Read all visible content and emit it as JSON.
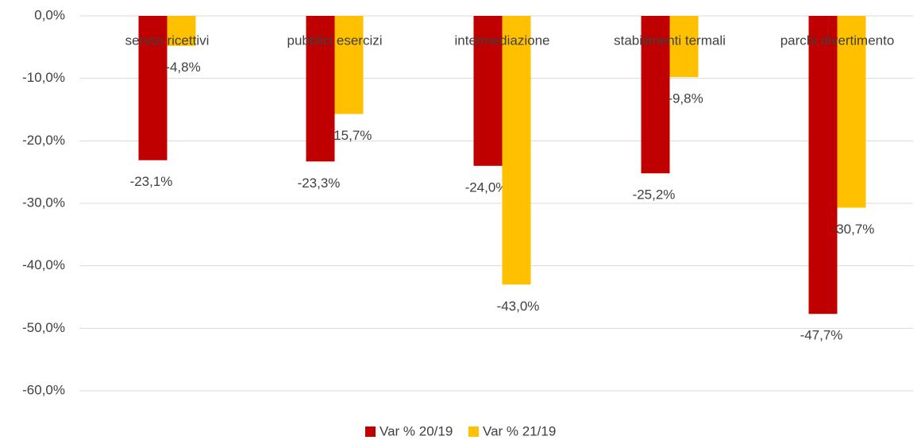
{
  "chart_data": {
    "type": "bar",
    "categories": [
      "servizi ricettivi",
      "pubblici esercizi",
      "intermediazione",
      "stabilimenti termali",
      "parchi divertimento"
    ],
    "series": [
      {
        "name": "Var % 20/19",
        "color": "#c00000",
        "values": [
          -23.1,
          -23.3,
          -24.0,
          -25.2,
          -47.7
        ],
        "value_labels": [
          "-23,1%",
          "-23,3%",
          "-24,0%",
          "-25,2%",
          "-47,7%"
        ]
      },
      {
        "name": "Var % 21/19",
        "color": "#ffc000",
        "values": [
          -4.8,
          -15.7,
          -43.0,
          -9.8,
          -30.7
        ],
        "value_labels": [
          "-4,8%",
          "-15,7%",
          "-43,0%",
          "-9,8%",
          "-30,7%"
        ]
      }
    ],
    "ylim": [
      -60,
      0
    ],
    "yticks": [
      {
        "value": 0,
        "label": "0,0%"
      },
      {
        "value": -10,
        "label": "-10,0%"
      },
      {
        "value": -20,
        "label": "-20,0%"
      },
      {
        "value": -30,
        "label": "-30,0%"
      },
      {
        "value": -40,
        "label": "-40,0%"
      },
      {
        "value": -50,
        "label": "-50,0%"
      },
      {
        "value": -60,
        "label": "-60,0%"
      }
    ],
    "grid": true,
    "legend": "bottom"
  }
}
